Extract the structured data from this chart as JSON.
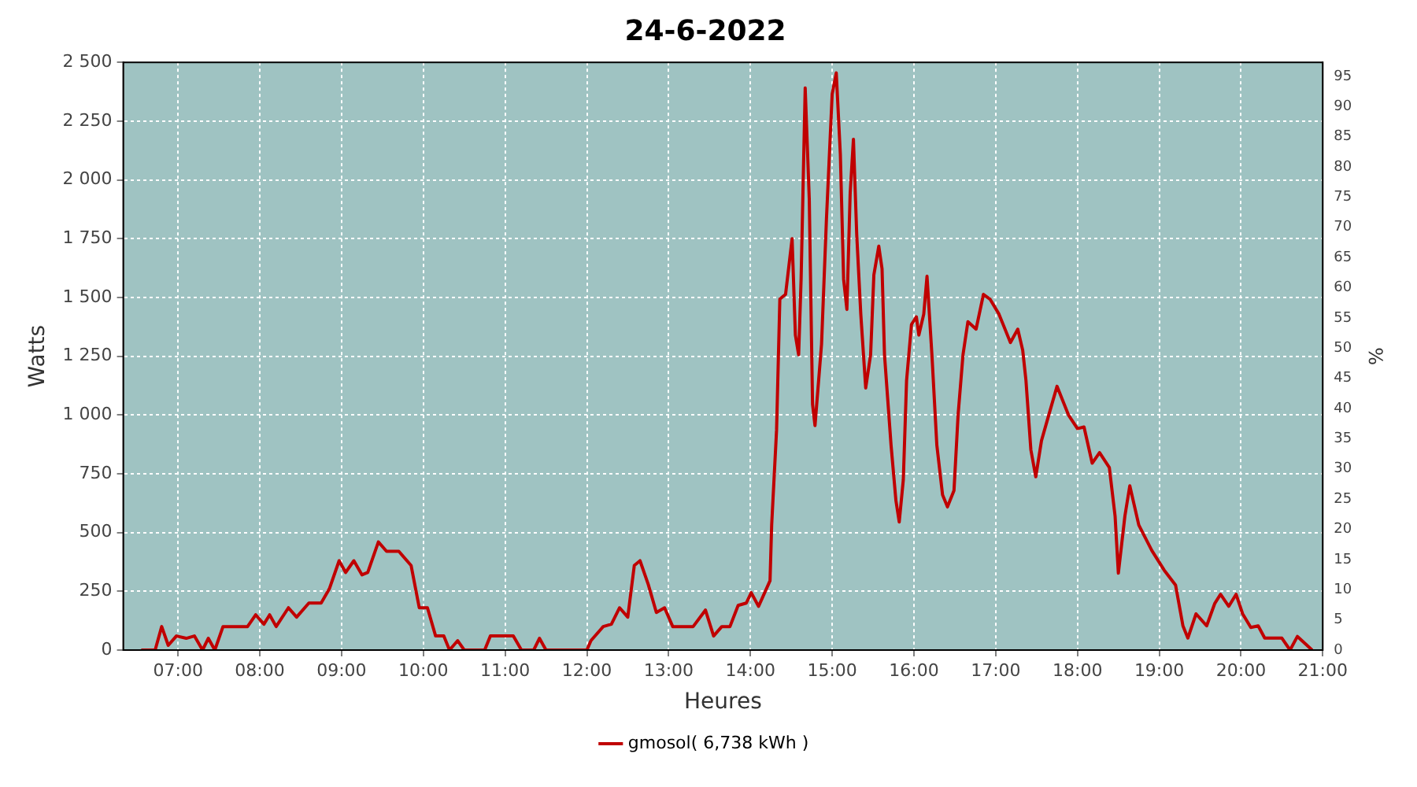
{
  "chart_data": {
    "type": "line",
    "title": "24-6-2022",
    "xlabel": "Heures",
    "ylabel": "Watts",
    "y2label": "%",
    "x": [
      6.55,
      6.72,
      6.8,
      6.88,
      6.98,
      7.1,
      7.2,
      7.3,
      7.37,
      7.45,
      7.55,
      7.7,
      7.85,
      7.95,
      8.05,
      8.12,
      8.2,
      8.35,
      8.45,
      8.6,
      8.75,
      8.85,
      8.97,
      9.05,
      9.15,
      9.25,
      9.32,
      9.45,
      9.55,
      9.7,
      9.85,
      9.95,
      10.05,
      10.15,
      10.25,
      10.32,
      10.42,
      10.5,
      10.75,
      10.82,
      11.0,
      11.1,
      11.2,
      11.35,
      11.42,
      11.5,
      12.0,
      12.05,
      12.2,
      12.3,
      12.4,
      12.5,
      12.58,
      12.65,
      12.75,
      12.85,
      12.95,
      13.05,
      13.2,
      13.3,
      13.45,
      13.55,
      13.65,
      13.75,
      13.85,
      13.95,
      14.01,
      14.1,
      14.24,
      14.26,
      14.32,
      14.36,
      14.43,
      14.51,
      14.55,
      14.59,
      14.62,
      14.67,
      14.72,
      14.76,
      14.79,
      14.87,
      14.93,
      15.0,
      15.05,
      15.1,
      15.14,
      15.18,
      15.22,
      15.26,
      15.3,
      15.35,
      15.41,
      15.47,
      15.51,
      15.57,
      15.61,
      15.64,
      15.72,
      15.78,
      15.82,
      15.87,
      15.91,
      15.97,
      16.03,
      16.06,
      16.12,
      16.16,
      16.22,
      16.28,
      16.35,
      16.41,
      16.49,
      16.54,
      16.6,
      16.66,
      16.76,
      16.85,
      16.93,
      17.04,
      17.18,
      17.27,
      17.33,
      17.37,
      17.43,
      17.49,
      17.56,
      17.66,
      17.75,
      17.89,
      18.0,
      18.08,
      18.18,
      18.27,
      18.39,
      18.46,
      18.5,
      18.58,
      18.64,
      18.75,
      18.91,
      19.06,
      19.2,
      19.29,
      19.35,
      19.45,
      19.58,
      19.68,
      19.75,
      19.85,
      19.94,
      20.02,
      20.12,
      20.21,
      20.29,
      20.5,
      20.6,
      20.69,
      20.87
    ],
    "series": [
      {
        "name": "gmosol( 6,738 kWh )",
        "color": "#c00000",
        "values": [
          0,
          0,
          100,
          20,
          60,
          50,
          60,
          0,
          50,
          0,
          100,
          100,
          100,
          150,
          110,
          150,
          100,
          180,
          140,
          200,
          200,
          260,
          380,
          330,
          380,
          320,
          330,
          460,
          420,
          420,
          360,
          180,
          180,
          60,
          60,
          0,
          40,
          0,
          0,
          60,
          60,
          60,
          0,
          0,
          50,
          0,
          0,
          40,
          100,
          110,
          180,
          140,
          360,
          380,
          280,
          160,
          180,
          100,
          100,
          100,
          170,
          60,
          100,
          100,
          190,
          200,
          244,
          186,
          295,
          532,
          936,
          1493,
          1513,
          1750,
          1340,
          1256,
          1577,
          2391,
          1917,
          1045,
          955,
          1301,
          1833,
          2365,
          2455,
          2109,
          1577,
          1449,
          1942,
          2173,
          1769,
          1429,
          1115,
          1256,
          1596,
          1718,
          1622,
          1256,
          872,
          635,
          545,
          724,
          1147,
          1385,
          1417,
          1340,
          1429,
          1590,
          1256,
          872,
          660,
          609,
          679,
          1000,
          1256,
          1397,
          1365,
          1513,
          1493,
          1429,
          1308,
          1365,
          1276,
          1147,
          852,
          737,
          891,
          1013,
          1122,
          1000,
          942,
          949,
          795,
          840,
          776,
          570,
          327,
          570,
          699,
          532,
          423,
          340,
          276,
          103,
          51,
          154,
          103,
          199,
          237,
          186,
          237,
          154,
          96,
          103,
          51,
          51,
          0,
          58,
          0
        ]
      }
    ],
    "xlim": [
      6.33,
      21.0
    ],
    "xticks": [
      {
        "value": 7,
        "label": "07:00"
      },
      {
        "value": 8,
        "label": "08:00"
      },
      {
        "value": 9,
        "label": "09:00"
      },
      {
        "value": 10,
        "label": "10:00"
      },
      {
        "value": 11,
        "label": "11:00"
      },
      {
        "value": 12,
        "label": "12:00"
      },
      {
        "value": 13,
        "label": "13:00"
      },
      {
        "value": 14,
        "label": "14:00"
      },
      {
        "value": 15,
        "label": "15:00"
      },
      {
        "value": 16,
        "label": "16:00"
      },
      {
        "value": 17,
        "label": "17:00"
      },
      {
        "value": 18,
        "label": "18:00"
      },
      {
        "value": 19,
        "label": "19:00"
      },
      {
        "value": 20,
        "label": "20:00"
      },
      {
        "value": 21,
        "label": "21:00"
      }
    ],
    "ylim": [
      0,
      2500
    ],
    "yticks": [
      0,
      250,
      500,
      750,
      {
        "value": 1000,
        "label": "1 000"
      },
      {
        "value": 1250,
        "label": "1 250"
      },
      {
        "value": 1500,
        "label": "1 500"
      },
      {
        "value": 1750,
        "label": "1 750"
      },
      {
        "value": 2000,
        "label": "2 000"
      },
      {
        "value": 2250,
        "label": "2 250"
      },
      {
        "value": 2500,
        "label": "2 500"
      }
    ],
    "y2lim": [
      0,
      97.3
    ],
    "y2ticks": [
      0,
      5,
      10,
      15,
      20,
      25,
      30,
      35,
      40,
      45,
      50,
      55,
      60,
      65,
      70,
      75,
      80,
      85,
      90,
      95
    ],
    "grid": true,
    "legend": "bottom",
    "marker": "none",
    "line_style": "solid"
  }
}
